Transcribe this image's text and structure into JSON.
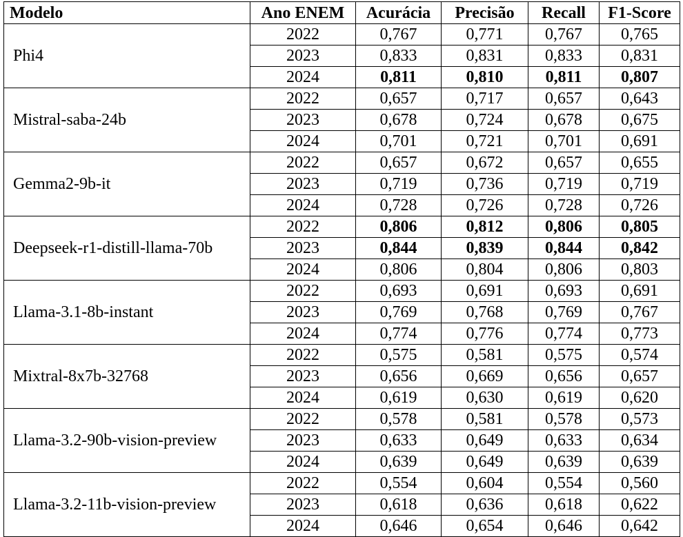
{
  "table": {
    "headers": {
      "model": "Modelo",
      "year": "Ano ENEM",
      "accuracy": "Acurácia",
      "precision": "Precisão",
      "recall": "Recall",
      "f1": "F1-Score"
    },
    "models": [
      {
        "name": "Phi4",
        "rows": [
          {
            "year": "2022",
            "accuracy": "0,767",
            "precision": "0,771",
            "recall": "0,767",
            "f1": "0,765",
            "best": false
          },
          {
            "year": "2023",
            "accuracy": "0,833",
            "precision": "0,831",
            "recall": "0,833",
            "f1": "0,831",
            "best": false
          },
          {
            "year": "2024",
            "accuracy": "0,811",
            "precision": "0,810",
            "recall": "0,811",
            "f1": "0,807",
            "best": true
          }
        ]
      },
      {
        "name": "Mistral-saba-24b",
        "rows": [
          {
            "year": "2022",
            "accuracy": "0,657",
            "precision": "0,717",
            "recall": "0,657",
            "f1": "0,643",
            "best": false
          },
          {
            "year": "2023",
            "accuracy": "0,678",
            "precision": "0,724",
            "recall": "0,678",
            "f1": "0,675",
            "best": false
          },
          {
            "year": "2024",
            "accuracy": "0,701",
            "precision": "0,721",
            "recall": "0,701",
            "f1": "0,691",
            "best": false
          }
        ]
      },
      {
        "name": "Gemma2-9b-it",
        "rows": [
          {
            "year": "2022",
            "accuracy": "0,657",
            "precision": "0,672",
            "recall": "0,657",
            "f1": "0,655",
            "best": false
          },
          {
            "year": "2023",
            "accuracy": "0,719",
            "precision": "0,736",
            "recall": "0,719",
            "f1": "0,719",
            "best": false
          },
          {
            "year": "2024",
            "accuracy": "0,728",
            "precision": "0,726",
            "recall": "0,728",
            "f1": "0,726",
            "best": false
          }
        ]
      },
      {
        "name": "Deepseek-r1-distill-llama-70b",
        "rows": [
          {
            "year": "2022",
            "accuracy": "0,806",
            "precision": "0,812",
            "recall": "0,806",
            "f1": "0,805",
            "best": true
          },
          {
            "year": "2023",
            "accuracy": "0,844",
            "precision": "0,839",
            "recall": "0,844",
            "f1": "0,842",
            "best": true
          },
          {
            "year": "2024",
            "accuracy": "0,806",
            "precision": "0,804",
            "recall": "0,806",
            "f1": "0,803",
            "best": false
          }
        ]
      },
      {
        "name": "Llama-3.1-8b-instant",
        "rows": [
          {
            "year": "2022",
            "accuracy": "0,693",
            "precision": "0,691",
            "recall": "0,693",
            "f1": "0,691",
            "best": false
          },
          {
            "year": "2023",
            "accuracy": "0,769",
            "precision": "0,768",
            "recall": "0,769",
            "f1": "0,767",
            "best": false
          },
          {
            "year": "2024",
            "accuracy": "0,774",
            "precision": "0,776",
            "recall": "0,774",
            "f1": "0,773",
            "best": false
          }
        ]
      },
      {
        "name": "Mixtral-8x7b-32768",
        "rows": [
          {
            "year": "2022",
            "accuracy": "0,575",
            "precision": "0,581",
            "recall": "0,575",
            "f1": "0,574",
            "best": false
          },
          {
            "year": "2023",
            "accuracy": "0,656",
            "precision": "0,669",
            "recall": "0,656",
            "f1": "0,657",
            "best": false
          },
          {
            "year": "2024",
            "accuracy": "0,619",
            "precision": "0,630",
            "recall": "0,619",
            "f1": "0,620",
            "best": false
          }
        ]
      },
      {
        "name": "Llama-3.2-90b-vision-preview",
        "rows": [
          {
            "year": "2022",
            "accuracy": "0,578",
            "precision": "0,581",
            "recall": "0,578",
            "f1": "0,573",
            "best": false
          },
          {
            "year": "2023",
            "accuracy": "0,633",
            "precision": "0,649",
            "recall": "0,633",
            "f1": "0,634",
            "best": false
          },
          {
            "year": "2024",
            "accuracy": "0,639",
            "precision": "0,649",
            "recall": "0,639",
            "f1": "0,639",
            "best": false
          }
        ]
      },
      {
        "name": "Llama-3.2-11b-vision-preview",
        "rows": [
          {
            "year": "2022",
            "accuracy": "0,554",
            "precision": "0,604",
            "recall": "0,554",
            "f1": "0,560",
            "best": false
          },
          {
            "year": "2023",
            "accuracy": "0,618",
            "precision": "0,636",
            "recall": "0,618",
            "f1": "0,622",
            "best": false
          },
          {
            "year": "2024",
            "accuracy": "0,646",
            "precision": "0,654",
            "recall": "0,646",
            "f1": "0,642",
            "best": false
          }
        ]
      }
    ]
  }
}
